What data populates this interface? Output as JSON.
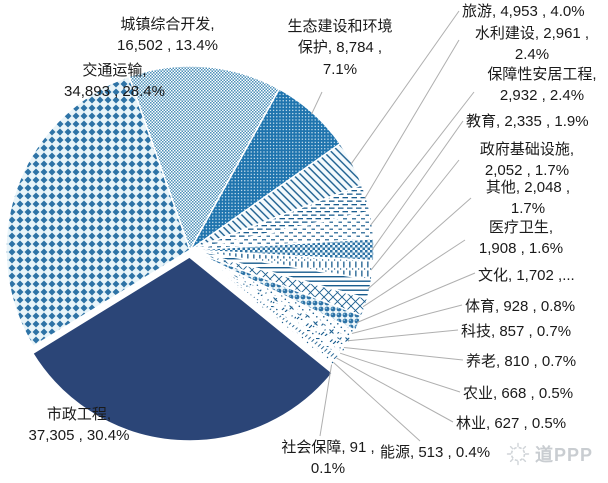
{
  "chart_data": {
    "type": "pie",
    "title": "",
    "legend_position": "none",
    "grid": false,
    "slices": [
      {
        "id": "municipal-engineering",
        "label": "市政工程",
        "value": 37305,
        "value_str": "37,305",
        "pct_str": "30.4%",
        "display": "市政工程,\n37,305 , 30.4%",
        "pattern": "solid-navy",
        "exploded": true
      },
      {
        "id": "transportation",
        "label": "交通运输",
        "value": 34893,
        "value_str": "34,893",
        "pct_str": "28.4%",
        "display": "交通运输,\n34,893 , 28.4%",
        "pattern": "diamond",
        "exploded": false
      },
      {
        "id": "urban-development",
        "label": "城镇综合开发",
        "value": 16502,
        "value_str": "16,502",
        "pct_str": "13.4%",
        "display": "城镇综合开发,\n16,502 , 13.4%",
        "pattern": "weave",
        "exploded": false
      },
      {
        "id": "ecology-environment",
        "label": "生态建设和环境保护",
        "value": 8784,
        "value_str": "8,784",
        "pct_str": "7.1%",
        "display": "生态建设和环境\n保护, 8,784 ,\n7.1%",
        "pattern": "dot-blue",
        "exploded": false
      },
      {
        "id": "tourism",
        "label": "旅游",
        "value": 4953,
        "value_str": "4,953",
        "pct_str": "4.0%",
        "display": "旅游, 4,953 , 4.0%",
        "pattern": "diag-stripe",
        "exploded": false
      },
      {
        "id": "water-conservancy",
        "label": "水利建设",
        "value": 2961,
        "value_str": "2,961",
        "pct_str": "2.4%",
        "display": "水利建设, 2,961 ,\n2.4%",
        "pattern": "dash-long",
        "exploded": false
      },
      {
        "id": "affordable-housing",
        "label": "保障性安居工程",
        "value": 2932,
        "value_str": "2,932",
        "pct_str": "2.4%",
        "display": "保障性安居工程,\n2,932 , 2.4%",
        "pattern": "dash-short",
        "exploded": false
      },
      {
        "id": "education",
        "label": "教育",
        "value": 2335,
        "value_str": "2,335",
        "pct_str": "1.9%",
        "display": "教育, 2,335 , 1.9%",
        "pattern": "checker",
        "exploded": false
      },
      {
        "id": "government-infrastructure",
        "label": "政府基础设施",
        "value": 2052,
        "value_str": "2,052",
        "pct_str": "1.7%",
        "display": "政府基础设施,\n2,052 , 1.7%",
        "pattern": "vbars",
        "exploded": false
      },
      {
        "id": "other",
        "label": "其他",
        "value": 2048,
        "value_str": "2,048",
        "pct_str": "1.7%",
        "display": "其他, 2,048 ,\n1.7%",
        "pattern": "hlines",
        "exploded": false
      },
      {
        "id": "healthcare",
        "label": "医疗卫生",
        "value": 1908,
        "value_str": "1,908",
        "pct_str": "1.6%",
        "display": "医疗卫生,\n1,908 , 1.6%",
        "pattern": "lattice",
        "exploded": false
      },
      {
        "id": "culture",
        "label": "文化",
        "value": 1702,
        "value_str": "1,702",
        "pct_str": "...",
        "display": "文化, 1,702 ,...",
        "pattern": "balls",
        "exploded": false
      },
      {
        "id": "sports",
        "label": "体育",
        "value": 928,
        "value_str": "928",
        "pct_str": "0.8%",
        "display": "体育, 928 , 0.8%",
        "pattern": "dots-sparse",
        "exploded": false
      },
      {
        "id": "science-technology",
        "label": "科技",
        "value": 857,
        "value_str": "857",
        "pct_str": "0.7%",
        "display": "科技, 857 , 0.7%",
        "pattern": "xmarks",
        "exploded": false
      },
      {
        "id": "elderly-care",
        "label": "养老",
        "value": 810,
        "value_str": "810",
        "pct_str": "0.7%",
        "display": "养老, 810 , 0.7%",
        "pattern": "diag-dash",
        "exploded": false
      },
      {
        "id": "agriculture",
        "label": "农业",
        "value": 668,
        "value_str": "668",
        "pct_str": "0.5%",
        "display": "农业, 668 , 0.5%",
        "pattern": "ticks",
        "exploded": false
      },
      {
        "id": "forestry",
        "label": "林业",
        "value": 627,
        "value_str": "627",
        "pct_str": "0.5%",
        "display": "林业, 627 , 0.5%",
        "pattern": "fine-diag",
        "exploded": false
      },
      {
        "id": "energy",
        "label": "能源",
        "value": 513,
        "value_str": "513",
        "pct_str": "0.4%",
        "display": "能源, 513 , 0.4%",
        "pattern": "dots-tiny",
        "exploded": false
      },
      {
        "id": "social-security",
        "label": "社会保障",
        "value": 91,
        "value_str": "91",
        "pct_str": "0.1%",
        "display": "社会保障, 91 ,\n0.1%",
        "pattern": "solid-light",
        "exploded": false
      }
    ]
  },
  "watermark": {
    "text": "道PPP"
  },
  "colors": {
    "navy": "#2B4577",
    "blue": "#2E73A6",
    "line_blue": "#1B5E8F",
    "light_bg": "#EAF4F9",
    "light_slice": "#7FAECD",
    "leader_line": "#AFAFAF",
    "label_text": "#1A1A1A",
    "watermark": "#C9CDD1"
  }
}
